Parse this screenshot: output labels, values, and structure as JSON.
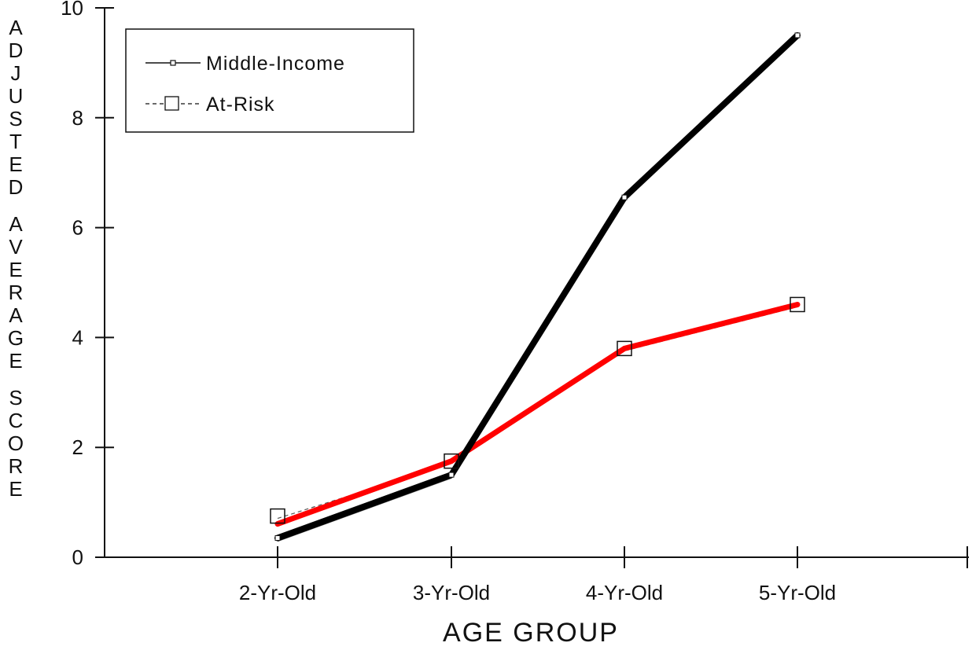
{
  "chart_data": {
    "type": "line",
    "title": "",
    "xlabel": "AGE GROUP",
    "ylabel": "ADJUSTED AVERAGE SCORE",
    "categories": [
      "2-Yr-Old",
      "3-Yr-Old",
      "4-Yr-Old",
      "5-Yr-Old"
    ],
    "ylim": [
      0,
      10
    ],
    "y_ticks": [
      "0",
      "2",
      "4",
      "6",
      "8",
      "10"
    ],
    "grid": false,
    "legend_position": "top-left",
    "series": [
      {
        "name": "Middle-Income",
        "marker": "small-square",
        "values": [
          0.35,
          1.5,
          6.55,
          9.5
        ],
        "highlight_color": "#000000"
      },
      {
        "name": "At-Risk",
        "marker": "open-square",
        "values": [
          0.75,
          1.75,
          3.8,
          4.6
        ],
        "highlight_color": "#ff0000"
      }
    ]
  }
}
